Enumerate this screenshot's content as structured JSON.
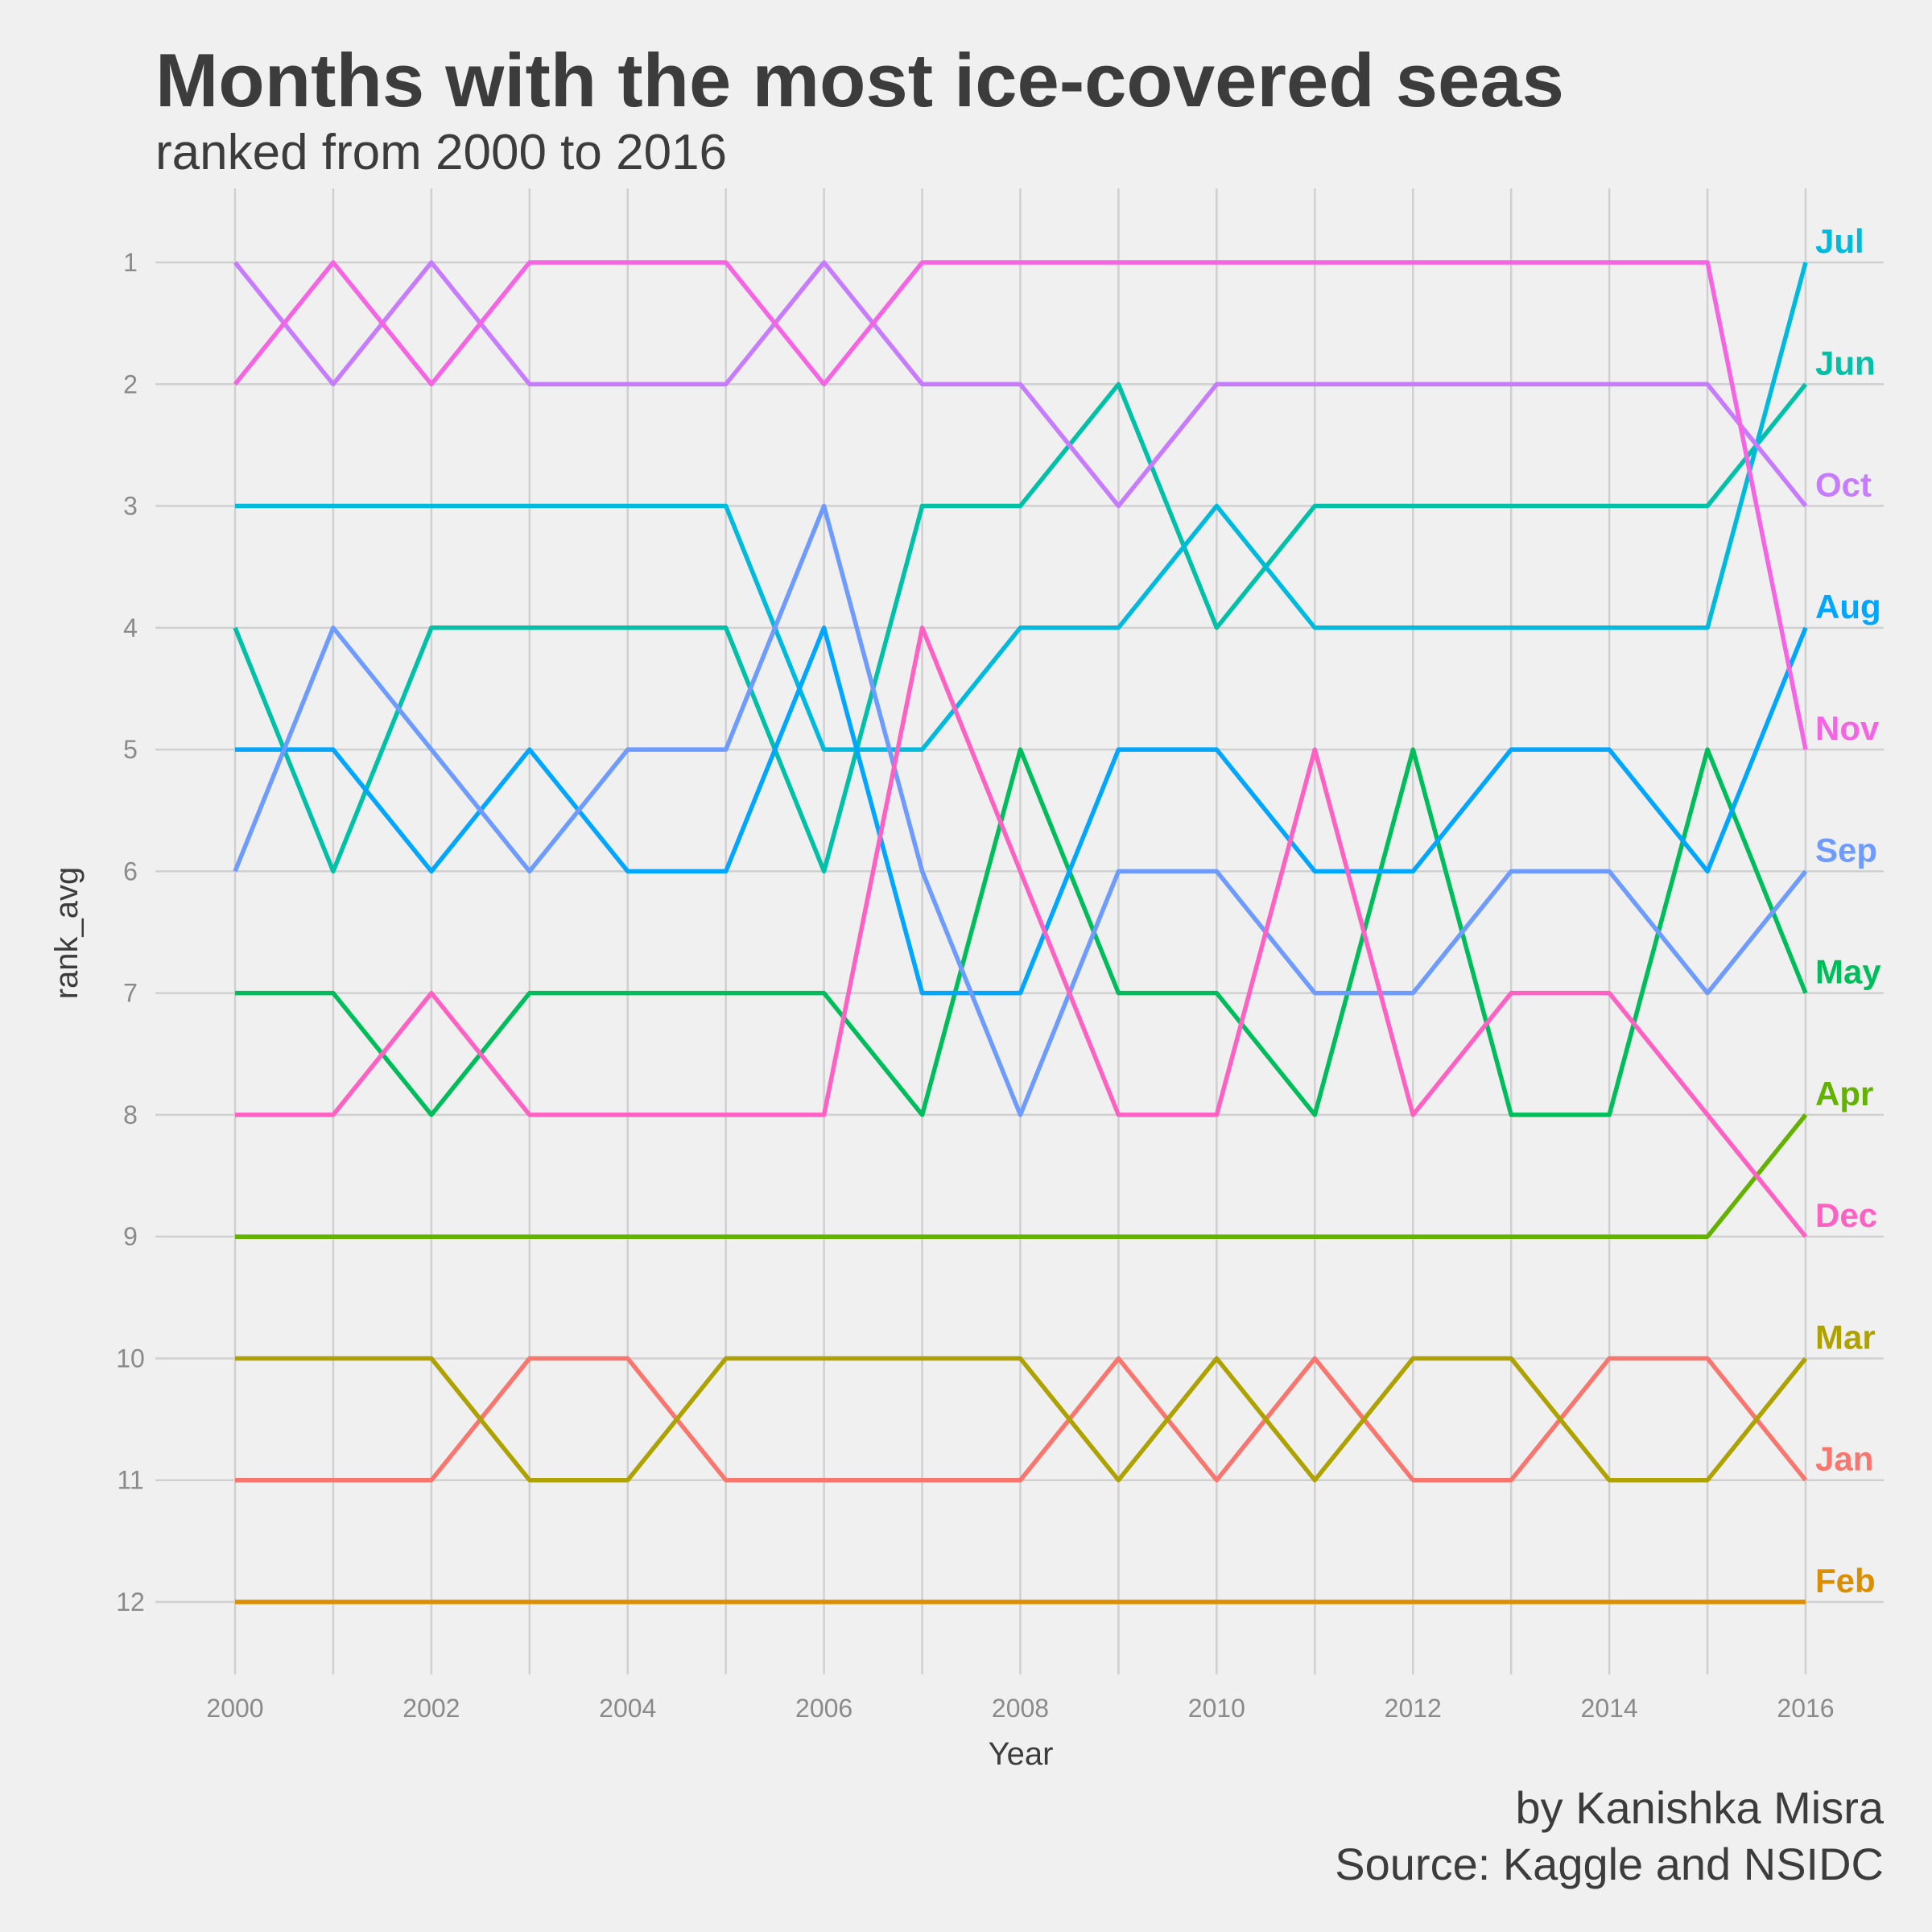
{
  "chart_data": {
    "type": "line",
    "title": "Months with the most ice-covered seas",
    "subtitle": "ranked from 2000 to 2016",
    "xlabel": "Year",
    "ylabel": "rank_avg",
    "caption_line1": "by Kanishka Misra",
    "caption_line2": "Source: Kaggle and NSIDC",
    "x": [
      2000,
      2001,
      2002,
      2003,
      2004,
      2005,
      2006,
      2007,
      2008,
      2009,
      2010,
      2011,
      2012,
      2013,
      2014,
      2015,
      2016
    ],
    "x_ticks": [
      2000,
      2002,
      2004,
      2006,
      2008,
      2010,
      2012,
      2014,
      2016
    ],
    "y_ticks": [
      1,
      2,
      3,
      4,
      5,
      6,
      7,
      8,
      9,
      10,
      11,
      12
    ],
    "xlim": [
      2000,
      2016
    ],
    "ylim": [
      1,
      12
    ],
    "y_reversed": true,
    "grid": true,
    "legend": "direct labels at right end of lines",
    "series": [
      {
        "name": "Jan",
        "color": "#F8766D",
        "values": [
          11,
          11,
          11,
          10,
          10,
          11,
          11,
          11,
          11,
          10,
          11,
          10,
          11,
          11,
          10,
          10,
          11
        ]
      },
      {
        "name": "Feb",
        "color": "#DB8E00",
        "values": [
          12,
          12,
          12,
          12,
          12,
          12,
          12,
          12,
          12,
          12,
          12,
          12,
          12,
          12,
          12,
          12,
          12
        ]
      },
      {
        "name": "Mar",
        "color": "#AEA200",
        "values": [
          10,
          10,
          10,
          11,
          11,
          10,
          10,
          10,
          10,
          11,
          10,
          11,
          10,
          10,
          11,
          11,
          10
        ]
      },
      {
        "name": "Apr",
        "color": "#64B200",
        "values": [
          9,
          9,
          9,
          9,
          9,
          9,
          9,
          9,
          9,
          9,
          9,
          9,
          9,
          9,
          9,
          9,
          8
        ]
      },
      {
        "name": "May",
        "color": "#00BD5C",
        "values": [
          7,
          7,
          8,
          7,
          7,
          7,
          7,
          8,
          5,
          7,
          7,
          8,
          5,
          8,
          8,
          5,
          7
        ]
      },
      {
        "name": "Jun",
        "color": "#00C1A7",
        "values": [
          4,
          6,
          4,
          4,
          4,
          4,
          6,
          3,
          3,
          2,
          4,
          3,
          3,
          3,
          3,
          3,
          2
        ]
      },
      {
        "name": "Jul",
        "color": "#00BADE",
        "values": [
          3,
          3,
          3,
          3,
          3,
          3,
          5,
          5,
          4,
          4,
          3,
          4,
          4,
          4,
          4,
          4,
          1
        ]
      },
      {
        "name": "Aug",
        "color": "#00A6FF",
        "values": [
          5,
          5,
          6,
          5,
          6,
          6,
          4,
          7,
          7,
          5,
          5,
          6,
          6,
          5,
          5,
          6,
          4
        ]
      },
      {
        "name": "Sep",
        "color": "#6E9BFF",
        "values": [
          6,
          4,
          5,
          6,
          5,
          5,
          3,
          6,
          8,
          6,
          6,
          7,
          7,
          6,
          6,
          7,
          6
        ]
      },
      {
        "name": "Oct",
        "color": "#C77CFF",
        "values": [
          1,
          2,
          1,
          2,
          2,
          2,
          1,
          2,
          2,
          3,
          2,
          2,
          2,
          2,
          2,
          2,
          3
        ]
      },
      {
        "name": "Nov",
        "color": "#F564E3",
        "values": [
          2,
          1,
          2,
          1,
          1,
          1,
          2,
          1,
          1,
          1,
          1,
          1,
          1,
          1,
          1,
          1,
          5
        ]
      },
      {
        "name": "Dec",
        "color": "#FF61C3",
        "values": [
          8,
          8,
          7,
          8,
          8,
          8,
          8,
          4,
          6,
          8,
          8,
          5,
          8,
          7,
          7,
          8,
          9
        ]
      }
    ]
  }
}
